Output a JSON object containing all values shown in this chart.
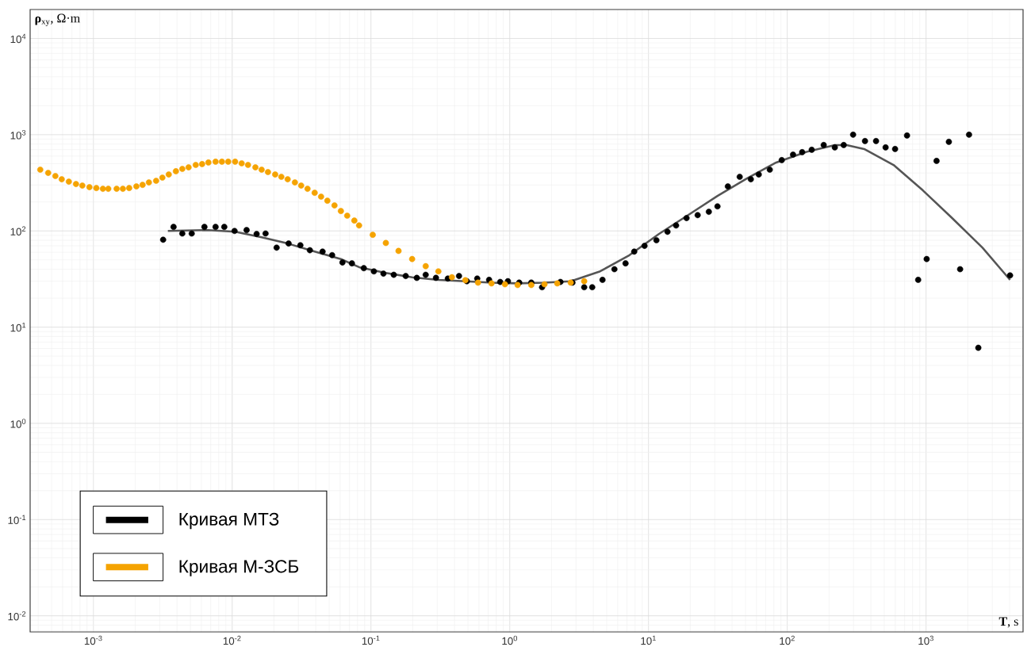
{
  "chart_data": {
    "type": "scatter",
    "log": "xy",
    "grid": true,
    "legend": "bottom left",
    "marker": "circle",
    "xlabel": "**T**, s",
    "ylabel": "**ρ**$_{xy}$, Ω·m",
    "xlim": [
      0.00035,
      5000
    ],
    "ylim": [
      0.0068,
      20000
    ],
    "xticks": [
      {
        "value": 0.001,
        "label": "10$^{-3}$"
      },
      {
        "value": 0.01,
        "label": "10$^{-2}$"
      },
      {
        "value": 0.1,
        "label": "10$^{-1}$"
      },
      {
        "value": 1,
        "label": "10$^{0}$"
      },
      {
        "value": 10,
        "label": "10$^{1}$"
      },
      {
        "value": 100,
        "label": "10$^{2}$"
      },
      {
        "value": 1000,
        "label": "10$^{3}$"
      }
    ],
    "yticks": [
      {
        "value": 0.01,
        "label": "10$^{-2}$"
      },
      {
        "value": 0.1,
        "label": "10$^{-1}$"
      },
      {
        "value": 1,
        "label": "10$^{0}$"
      },
      {
        "value": 10,
        "label": "10$^{1}$"
      },
      {
        "value": 100,
        "label": "10$^{2}$"
      },
      {
        "value": 1000,
        "label": "10$^{3}$"
      },
      {
        "value": 10000,
        "label": "10$^{4}$"
      }
    ],
    "series": [
      {
        "type": "line",
        "color": "#555555",
        "marker": "none",
        "x": [
          0.00344,
          0.00674,
          0.0105,
          0.0163,
          0.0251,
          0.0393,
          0.0607,
          0.0821,
          0.128,
          0.198,
          0.306,
          0.479,
          0.739,
          1.14,
          1.78,
          2.75,
          4.48,
          7.29,
          11.9,
          19.3,
          31.4,
          51.1,
          83.2,
          135,
          220,
          268,
          358,
          583,
          948,
          1540,
          2550,
          4030
        ],
        "values": [
          100,
          102,
          98,
          86,
          74,
          61,
          51,
          42,
          36.5,
          33,
          31,
          30,
          29,
          28.5,
          29,
          30,
          38,
          56,
          93,
          146,
          231,
          351,
          514,
          658,
          781,
          781,
          710,
          485,
          264,
          136,
          67,
          31
        ]
      },
      {
        "name": "Кривая МТЗ",
        "color": "#000000",
        "x": [
          0.00318,
          0.00378,
          0.00437,
          0.00511,
          0.00631,
          0.00759,
          0.00877,
          0.0104,
          0.0127,
          0.015,
          0.0174,
          0.0209,
          0.0255,
          0.031,
          0.0363,
          0.0448,
          0.0525,
          0.0623,
          0.0729,
          0.0888,
          0.105,
          0.123,
          0.146,
          0.178,
          0.214,
          0.248,
          0.294,
          0.358,
          0.431,
          0.491,
          0.583,
          0.71,
          0.854,
          0.97,
          1.17,
          1.43,
          1.71,
          2.32,
          2.83,
          3.44,
          3.93,
          4.66,
          5.68,
          6.83,
          7.89,
          9.36,
          11.4,
          13.7,
          15.8,
          18.8,
          22.6,
          27.2,
          31.4,
          37.3,
          45.4,
          54.6,
          62.3,
          74.8,
          91.2,
          110,
          128,
          150,
          183,
          220,
          255,
          298,
          363,
          436,
          511,
          598,
          729,
          877,
          1010,
          1190,
          1460,
          1760,
          2040,
          2380,
          4030
        ],
        "values": [
          81,
          110,
          94,
          94,
          110,
          110,
          110,
          100,
          102,
          93,
          94,
          67,
          74,
          71,
          63,
          61,
          56,
          47,
          46,
          41,
          38,
          36,
          35,
          34,
          32.5,
          35,
          32.5,
          32,
          34,
          30,
          32,
          31,
          29.5,
          30,
          29,
          29,
          26,
          29.5,
          29,
          26,
          26,
          31,
          40,
          46,
          61,
          70,
          80,
          98,
          114,
          136,
          146,
          158,
          180,
          290,
          365,
          344,
          386,
          433,
          544,
          621,
          658,
          697,
          781,
          738,
          781,
          1000,
          859,
          859,
          738,
          710,
          981,
          31,
          51,
          534,
          843,
          40,
          1000,
          6.1,
          34.5
        ]
      },
      {
        "name": "Кривая М-ЗСБ",
        "color": "#f5a300",
        "x": [
          0.000414,
          0.000472,
          0.000532,
          0.000591,
          0.000665,
          0.000749,
          0.000832,
          0.000936,
          0.00105,
          0.00117,
          0.00128,
          0.00147,
          0.00163,
          0.00181,
          0.00204,
          0.00226,
          0.00251,
          0.00283,
          0.00314,
          0.00349,
          0.00393,
          0.00437,
          0.00485,
          0.00546,
          0.00607,
          0.00674,
          0.00759,
          0.00843,
          0.00936,
          0.0105,
          0.0117,
          0.013,
          0.0147,
          0.0163,
          0.0181,
          0.0204,
          0.0226,
          0.0251,
          0.0283,
          0.0314,
          0.0349,
          0.0393,
          0.0437,
          0.0485,
          0.0546,
          0.0607,
          0.0674,
          0.0759,
          0.0821,
          0.103,
          0.128,
          0.158,
          0.198,
          0.248,
          0.306,
          0.383,
          0.479,
          0.591,
          0.739,
          0.924,
          1.14,
          1.43,
          1.78,
          2.2,
          2.75,
          3.44
        ],
        "values": [
          433,
          401,
          372,
          344,
          325,
          307,
          296,
          285,
          279,
          274,
          274,
          274,
          274,
          279,
          290,
          301,
          319,
          332,
          358,
          386,
          417,
          441,
          458,
          485,
          495,
          514,
          524,
          524,
          524,
          524,
          504,
          485,
          458,
          433,
          409,
          386,
          365,
          344,
          319,
          296,
          274,
          249,
          227,
          206,
          184,
          161,
          144,
          128,
          114,
          91,
          75,
          62,
          51,
          43,
          38,
          33,
          30.7,
          29,
          28.5,
          27.9,
          27.4,
          27.4,
          27.9,
          28.5,
          29,
          30
        ]
      }
    ]
  }
}
